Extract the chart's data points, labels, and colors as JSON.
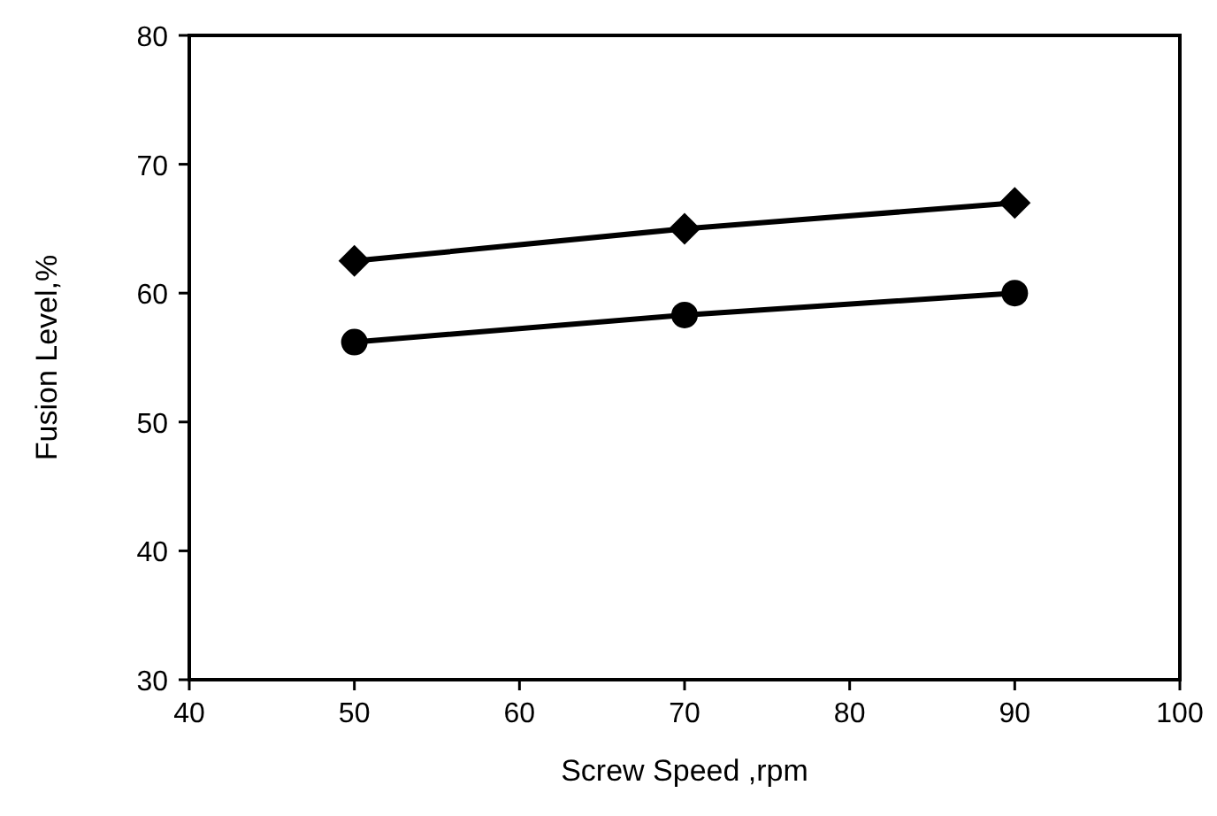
{
  "chart_data": {
    "type": "line",
    "xlabel": "Screw Speed ,rpm",
    "ylabel": "Fusion Level,%",
    "x": [
      50,
      70,
      90
    ],
    "series": [
      {
        "color": "#000000",
        "marker": "diamond",
        "values": [
          62.5,
          65,
          67
        ]
      },
      {
        "color": "#000000",
        "marker": "circle",
        "values": [
          56.2,
          58.3,
          60
        ]
      }
    ],
    "xlim": [
      40,
      100
    ],
    "xticks": [
      40,
      50,
      60,
      70,
      80,
      90,
      100
    ],
    "ylim": [
      30,
      80
    ],
    "yticks": [
      30,
      40,
      50,
      60,
      70,
      80
    ],
    "line_style": "solid"
  }
}
